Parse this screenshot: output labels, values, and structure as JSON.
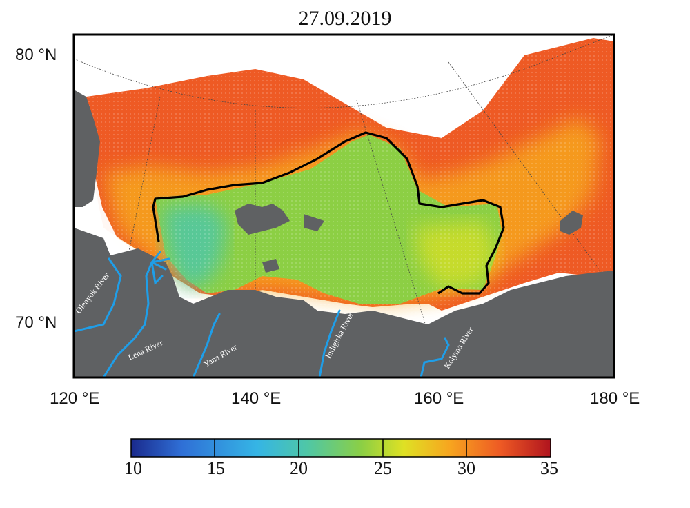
{
  "title": "27.09.2019",
  "latitude_labels": [
    "80 °N",
    "70 °N"
  ],
  "longitude_labels": [
    "120 °E",
    "140 °E",
    "160 °E",
    "180 °E"
  ],
  "rivers": [
    "Olenyok River",
    "Lena River",
    "Yana River",
    "Indigirka River",
    "Kolyma River"
  ],
  "colorbar": {
    "ticks": [
      "10",
      "15",
      "20",
      "25",
      "30",
      "35"
    ],
    "min": 10,
    "max": 35,
    "colors": [
      "#1a2a8c",
      "#2f6fd6",
      "#35b5e5",
      "#4fc7a6",
      "#8ccf44",
      "#dfe124",
      "#f7a51f",
      "#ee5a24",
      "#b0141e"
    ]
  },
  "colors": {
    "land": "#5f6163",
    "river": "#1f9ee8",
    "front_line": "#000000",
    "frame": "#000000"
  }
}
